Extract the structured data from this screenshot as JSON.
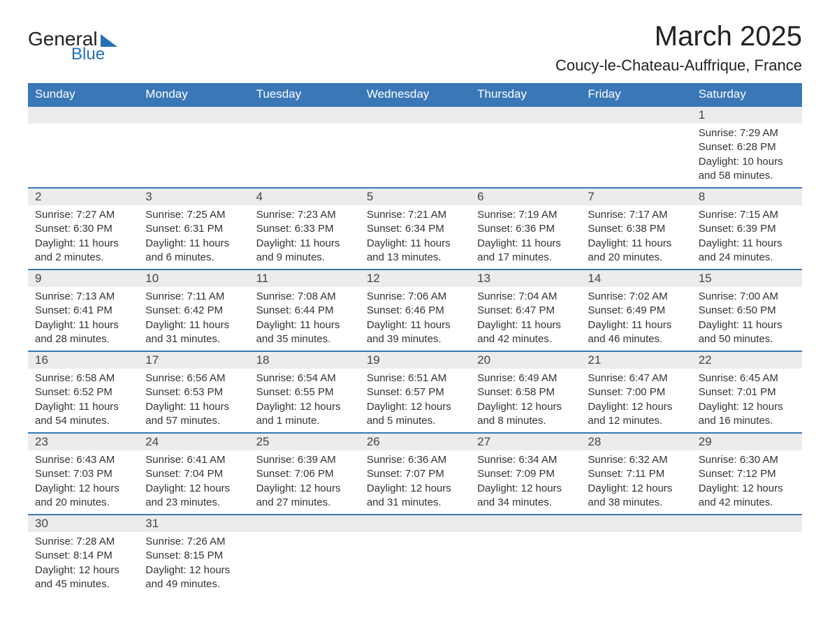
{
  "brand": {
    "word1": "General",
    "word2": "Blue"
  },
  "title": "March 2025",
  "location": "Coucy-le-Chateau-Auffrique, France",
  "colors": {
    "header_bg": "#3a77b7",
    "header_text": "#ffffff",
    "row_border": "#3a77b7",
    "daynum_bg": "#ececec",
    "text": "#333333",
    "brand_blue": "#2470b8"
  },
  "weekdays": [
    "Sunday",
    "Monday",
    "Tuesday",
    "Wednesday",
    "Thursday",
    "Friday",
    "Saturday"
  ],
  "weeks": [
    [
      {
        "blank": true
      },
      {
        "blank": true
      },
      {
        "blank": true
      },
      {
        "blank": true
      },
      {
        "blank": true
      },
      {
        "blank": true
      },
      {
        "day": "1",
        "sunrise": "Sunrise: 7:29 AM",
        "sunset": "Sunset: 6:28 PM",
        "daylight1": "Daylight: 10 hours",
        "daylight2": "and 58 minutes."
      }
    ],
    [
      {
        "day": "2",
        "sunrise": "Sunrise: 7:27 AM",
        "sunset": "Sunset: 6:30 PM",
        "daylight1": "Daylight: 11 hours",
        "daylight2": "and 2 minutes."
      },
      {
        "day": "3",
        "sunrise": "Sunrise: 7:25 AM",
        "sunset": "Sunset: 6:31 PM",
        "daylight1": "Daylight: 11 hours",
        "daylight2": "and 6 minutes."
      },
      {
        "day": "4",
        "sunrise": "Sunrise: 7:23 AM",
        "sunset": "Sunset: 6:33 PM",
        "daylight1": "Daylight: 11 hours",
        "daylight2": "and 9 minutes."
      },
      {
        "day": "5",
        "sunrise": "Sunrise: 7:21 AM",
        "sunset": "Sunset: 6:34 PM",
        "daylight1": "Daylight: 11 hours",
        "daylight2": "and 13 minutes."
      },
      {
        "day": "6",
        "sunrise": "Sunrise: 7:19 AM",
        "sunset": "Sunset: 6:36 PM",
        "daylight1": "Daylight: 11 hours",
        "daylight2": "and 17 minutes."
      },
      {
        "day": "7",
        "sunrise": "Sunrise: 7:17 AM",
        "sunset": "Sunset: 6:38 PM",
        "daylight1": "Daylight: 11 hours",
        "daylight2": "and 20 minutes."
      },
      {
        "day": "8",
        "sunrise": "Sunrise: 7:15 AM",
        "sunset": "Sunset: 6:39 PM",
        "daylight1": "Daylight: 11 hours",
        "daylight2": "and 24 minutes."
      }
    ],
    [
      {
        "day": "9",
        "sunrise": "Sunrise: 7:13 AM",
        "sunset": "Sunset: 6:41 PM",
        "daylight1": "Daylight: 11 hours",
        "daylight2": "and 28 minutes."
      },
      {
        "day": "10",
        "sunrise": "Sunrise: 7:11 AM",
        "sunset": "Sunset: 6:42 PM",
        "daylight1": "Daylight: 11 hours",
        "daylight2": "and 31 minutes."
      },
      {
        "day": "11",
        "sunrise": "Sunrise: 7:08 AM",
        "sunset": "Sunset: 6:44 PM",
        "daylight1": "Daylight: 11 hours",
        "daylight2": "and 35 minutes."
      },
      {
        "day": "12",
        "sunrise": "Sunrise: 7:06 AM",
        "sunset": "Sunset: 6:46 PM",
        "daylight1": "Daylight: 11 hours",
        "daylight2": "and 39 minutes."
      },
      {
        "day": "13",
        "sunrise": "Sunrise: 7:04 AM",
        "sunset": "Sunset: 6:47 PM",
        "daylight1": "Daylight: 11 hours",
        "daylight2": "and 42 minutes."
      },
      {
        "day": "14",
        "sunrise": "Sunrise: 7:02 AM",
        "sunset": "Sunset: 6:49 PM",
        "daylight1": "Daylight: 11 hours",
        "daylight2": "and 46 minutes."
      },
      {
        "day": "15",
        "sunrise": "Sunrise: 7:00 AM",
        "sunset": "Sunset: 6:50 PM",
        "daylight1": "Daylight: 11 hours",
        "daylight2": "and 50 minutes."
      }
    ],
    [
      {
        "day": "16",
        "sunrise": "Sunrise: 6:58 AM",
        "sunset": "Sunset: 6:52 PM",
        "daylight1": "Daylight: 11 hours",
        "daylight2": "and 54 minutes."
      },
      {
        "day": "17",
        "sunrise": "Sunrise: 6:56 AM",
        "sunset": "Sunset: 6:53 PM",
        "daylight1": "Daylight: 11 hours",
        "daylight2": "and 57 minutes."
      },
      {
        "day": "18",
        "sunrise": "Sunrise: 6:54 AM",
        "sunset": "Sunset: 6:55 PM",
        "daylight1": "Daylight: 12 hours",
        "daylight2": "and 1 minute."
      },
      {
        "day": "19",
        "sunrise": "Sunrise: 6:51 AM",
        "sunset": "Sunset: 6:57 PM",
        "daylight1": "Daylight: 12 hours",
        "daylight2": "and 5 minutes."
      },
      {
        "day": "20",
        "sunrise": "Sunrise: 6:49 AM",
        "sunset": "Sunset: 6:58 PM",
        "daylight1": "Daylight: 12 hours",
        "daylight2": "and 8 minutes."
      },
      {
        "day": "21",
        "sunrise": "Sunrise: 6:47 AM",
        "sunset": "Sunset: 7:00 PM",
        "daylight1": "Daylight: 12 hours",
        "daylight2": "and 12 minutes."
      },
      {
        "day": "22",
        "sunrise": "Sunrise: 6:45 AM",
        "sunset": "Sunset: 7:01 PM",
        "daylight1": "Daylight: 12 hours",
        "daylight2": "and 16 minutes."
      }
    ],
    [
      {
        "day": "23",
        "sunrise": "Sunrise: 6:43 AM",
        "sunset": "Sunset: 7:03 PM",
        "daylight1": "Daylight: 12 hours",
        "daylight2": "and 20 minutes."
      },
      {
        "day": "24",
        "sunrise": "Sunrise: 6:41 AM",
        "sunset": "Sunset: 7:04 PM",
        "daylight1": "Daylight: 12 hours",
        "daylight2": "and 23 minutes."
      },
      {
        "day": "25",
        "sunrise": "Sunrise: 6:39 AM",
        "sunset": "Sunset: 7:06 PM",
        "daylight1": "Daylight: 12 hours",
        "daylight2": "and 27 minutes."
      },
      {
        "day": "26",
        "sunrise": "Sunrise: 6:36 AM",
        "sunset": "Sunset: 7:07 PM",
        "daylight1": "Daylight: 12 hours",
        "daylight2": "and 31 minutes."
      },
      {
        "day": "27",
        "sunrise": "Sunrise: 6:34 AM",
        "sunset": "Sunset: 7:09 PM",
        "daylight1": "Daylight: 12 hours",
        "daylight2": "and 34 minutes."
      },
      {
        "day": "28",
        "sunrise": "Sunrise: 6:32 AM",
        "sunset": "Sunset: 7:11 PM",
        "daylight1": "Daylight: 12 hours",
        "daylight2": "and 38 minutes."
      },
      {
        "day": "29",
        "sunrise": "Sunrise: 6:30 AM",
        "sunset": "Sunset: 7:12 PM",
        "daylight1": "Daylight: 12 hours",
        "daylight2": "and 42 minutes."
      }
    ],
    [
      {
        "day": "30",
        "sunrise": "Sunrise: 7:28 AM",
        "sunset": "Sunset: 8:14 PM",
        "daylight1": "Daylight: 12 hours",
        "daylight2": "and 45 minutes."
      },
      {
        "day": "31",
        "sunrise": "Sunrise: 7:26 AM",
        "sunset": "Sunset: 8:15 PM",
        "daylight1": "Daylight: 12 hours",
        "daylight2": "and 49 minutes."
      },
      {
        "blank": true
      },
      {
        "blank": true
      },
      {
        "blank": true
      },
      {
        "blank": true
      },
      {
        "blank": true
      }
    ]
  ]
}
